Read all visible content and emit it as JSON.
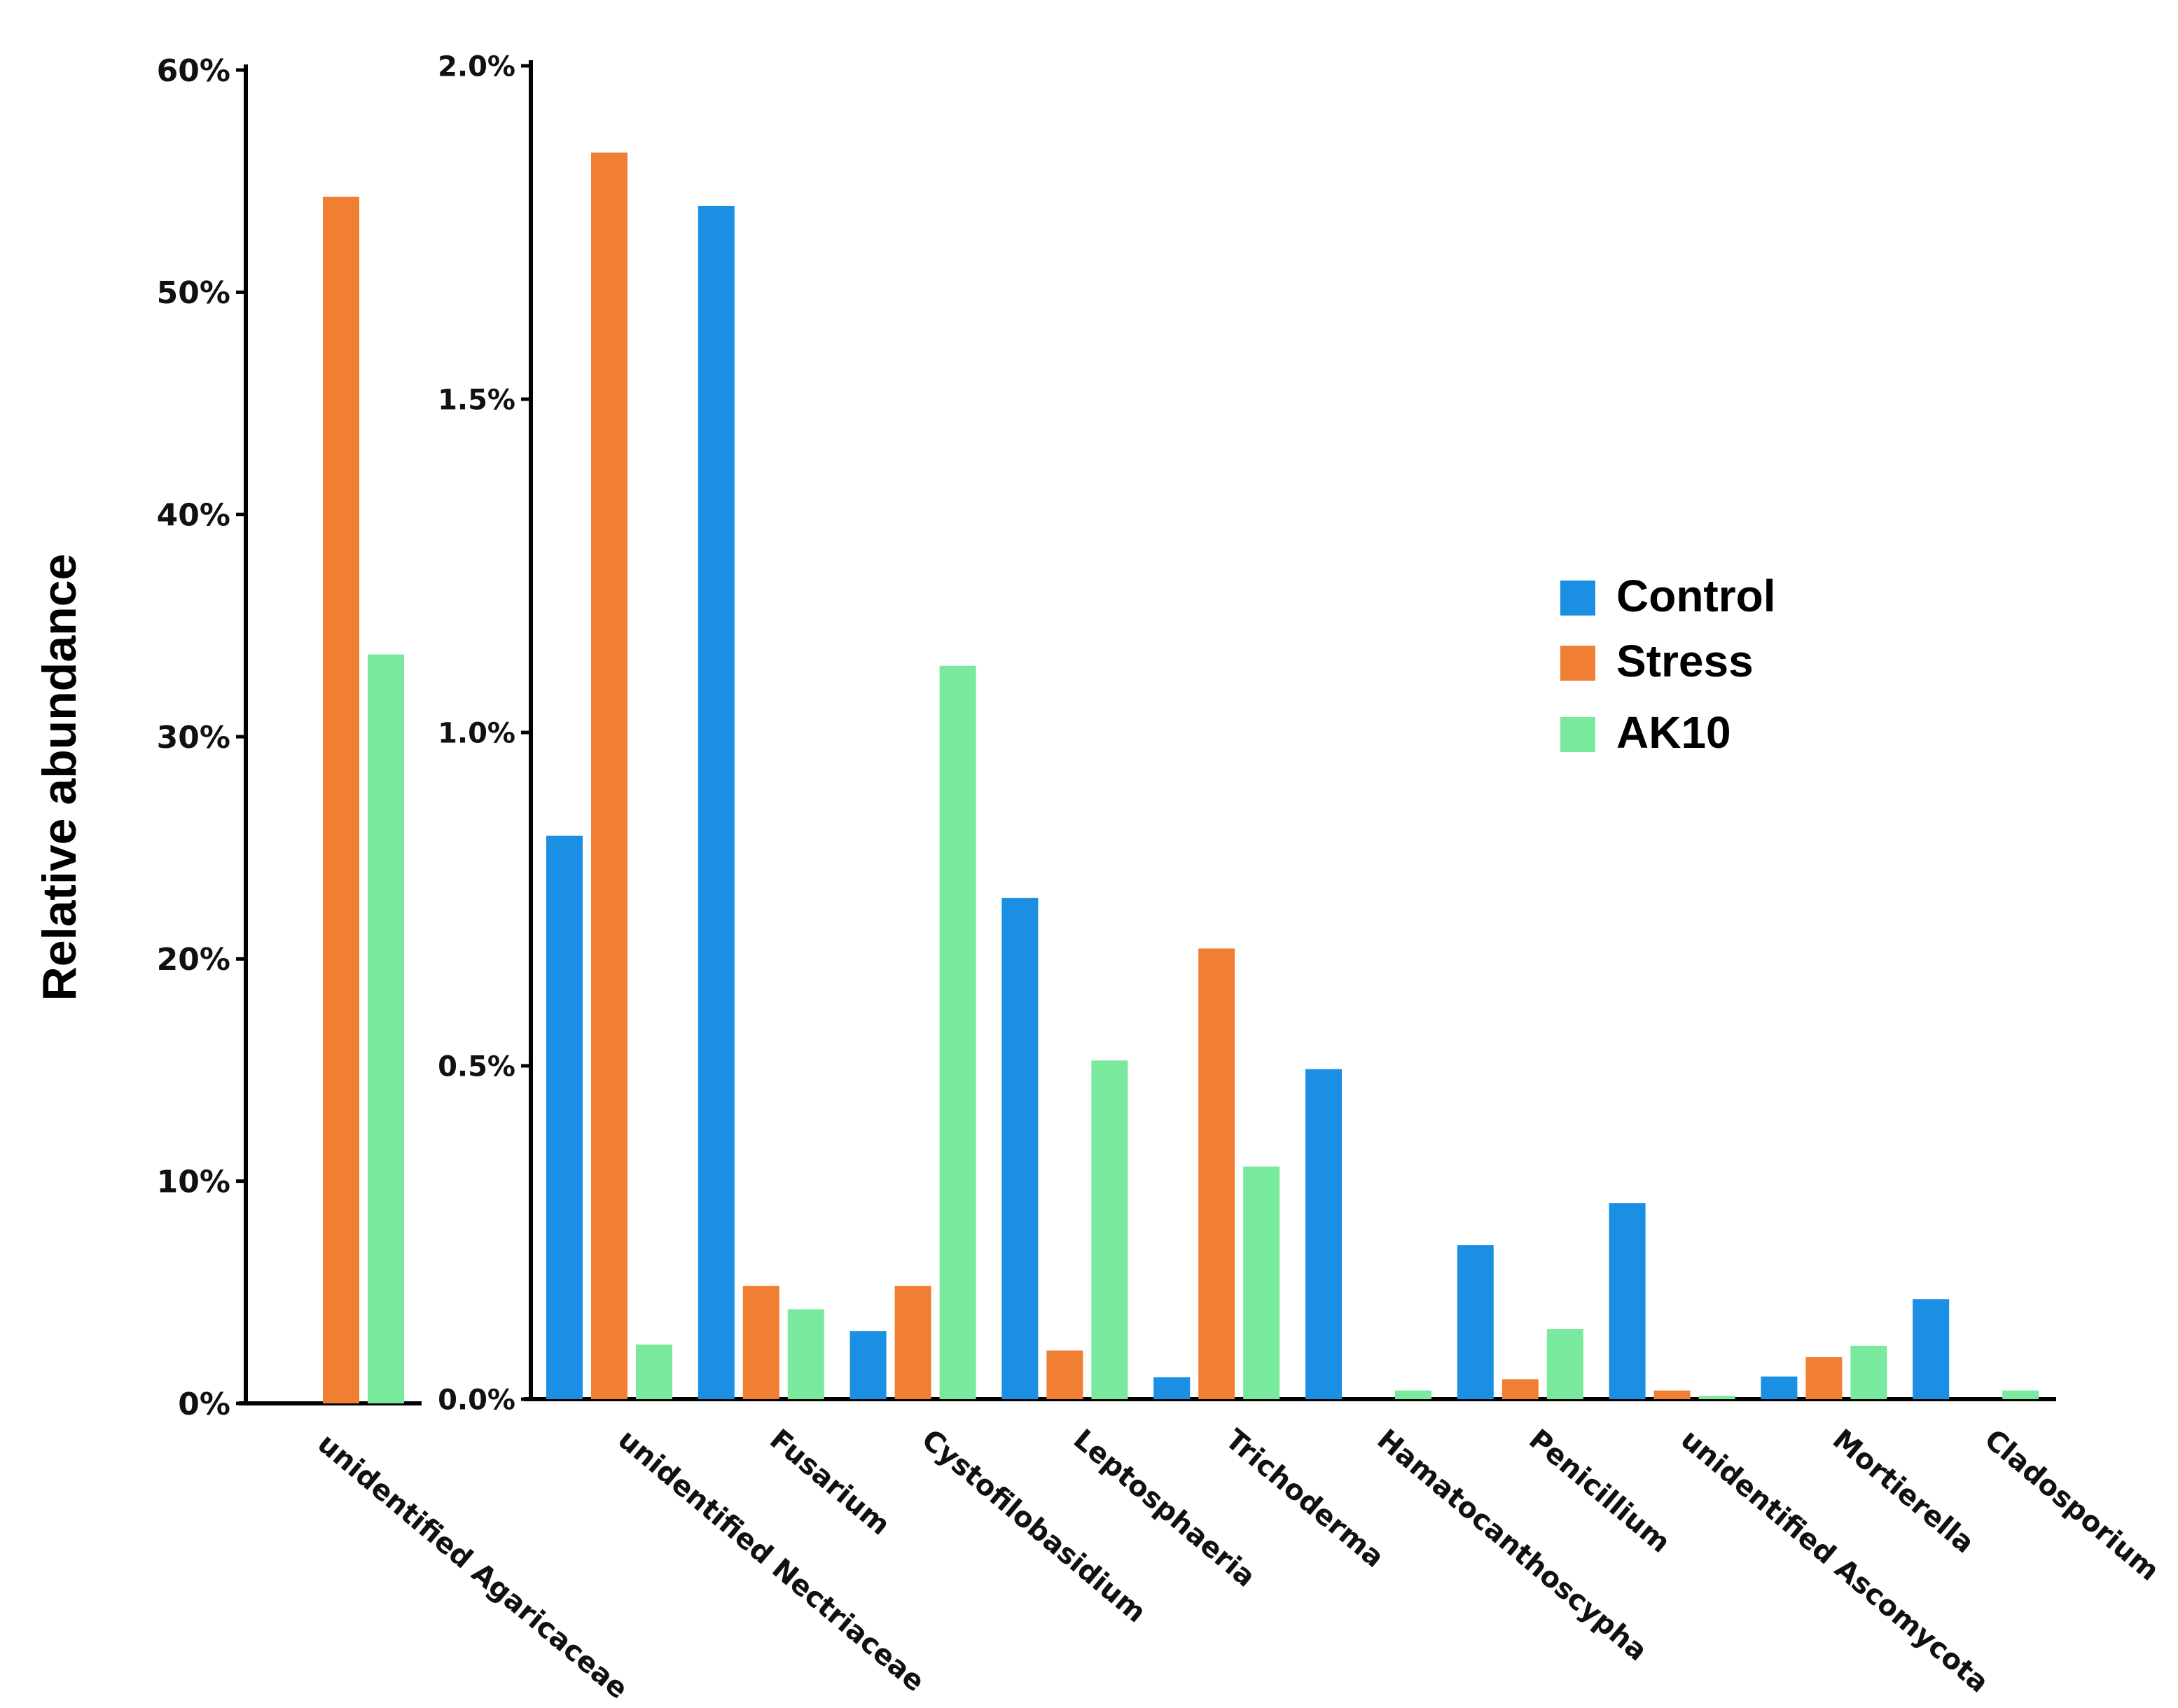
{
  "chart_data": {
    "type": "bar",
    "ylabel": "Relative abundance",
    "legend_position": "right",
    "series": [
      {
        "name": "Control",
        "color": "#1a8fe3"
      },
      {
        "name": "Stress",
        "color": "#f07f33"
      },
      {
        "name": "AK10",
        "color": "#79e99e"
      }
    ],
    "left_panel": {
      "categories": [
        "unidentified Agaricaceae"
      ],
      "ylim": [
        0,
        60
      ],
      "yticks": [
        0,
        10,
        20,
        30,
        40,
        50,
        60
      ],
      "tick_labels": [
        "0%",
        "10%",
        "20%",
        "30%",
        "40%",
        "50%",
        "60%"
      ],
      "values": {
        "Control": [
          0
        ],
        "Stress": [
          54.3
        ],
        "AK10": [
          33.7
        ]
      }
    },
    "right_panel": {
      "categories": [
        "unidentified Nectriaceae",
        "Fusarium",
        "Cystofilobasidium",
        "Leptosphaeria",
        "Trichoderma",
        "Hamatocanthoscypha",
        "Penicillium",
        "unidentified Ascomycota",
        "Mortierella",
        "Cladosporium"
      ],
      "ylim": [
        0,
        2.0
      ],
      "yticks": [
        0,
        0.5,
        1.0,
        1.5,
        2.0
      ],
      "tick_labels": [
        "0.0%",
        "0.5%",
        "1.0%",
        "1.5%",
        "2.0%"
      ],
      "values": {
        "Control": [
          0.845,
          1.79,
          0.102,
          0.752,
          0.033,
          0.495,
          0.231,
          0.294,
          0.034,
          0.15
        ],
        "Stress": [
          1.87,
          0.17,
          0.17,
          0.073,
          0.676,
          0.0,
          0.03,
          0.013,
          0.063,
          0.0
        ],
        "AK10": [
          0.082,
          0.135,
          1.1,
          0.508,
          0.349,
          0.013,
          0.105,
          0.005,
          0.08,
          0.013
        ]
      }
    }
  }
}
